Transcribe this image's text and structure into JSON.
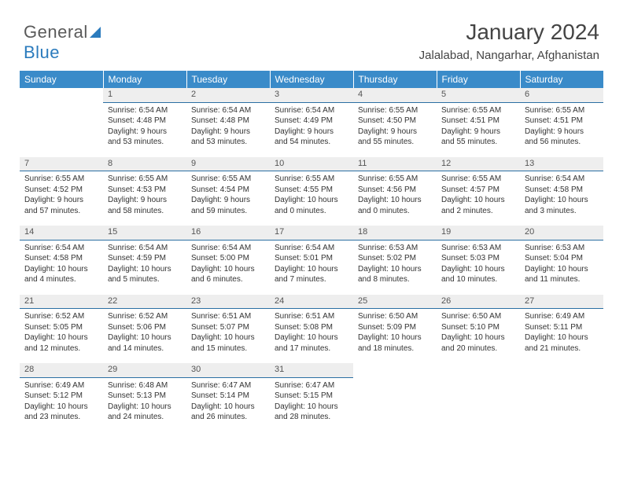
{
  "logo": {
    "word1": "General",
    "word2": "Blue"
  },
  "title": "January 2024",
  "location": "Jalalabad, Nangarhar, Afghanistan",
  "headers": [
    "Sunday",
    "Monday",
    "Tuesday",
    "Wednesday",
    "Thursday",
    "Friday",
    "Saturday"
  ],
  "colors": {
    "header_bg": "#3a8bc9",
    "header_text": "#ffffff",
    "daynum_bg": "#eeeeee",
    "daynum_border": "#2b6fa3",
    "logo_gray": "#5a5a5a",
    "logo_blue": "#2b7bbd",
    "text": "#333333",
    "background": "#ffffff"
  },
  "fonts": {
    "title_size": 28,
    "location_size": 15,
    "header_size": 12,
    "daynum_size": 11,
    "body_size": 10
  },
  "weeks": [
    [
      null,
      {
        "n": "1",
        "sr": "6:54 AM",
        "ss": "4:48 PM",
        "dl": "9 hours and 53 minutes."
      },
      {
        "n": "2",
        "sr": "6:54 AM",
        "ss": "4:48 PM",
        "dl": "9 hours and 53 minutes."
      },
      {
        "n": "3",
        "sr": "6:54 AM",
        "ss": "4:49 PM",
        "dl": "9 hours and 54 minutes."
      },
      {
        "n": "4",
        "sr": "6:55 AM",
        "ss": "4:50 PM",
        "dl": "9 hours and 55 minutes."
      },
      {
        "n": "5",
        "sr": "6:55 AM",
        "ss": "4:51 PM",
        "dl": "9 hours and 55 minutes."
      },
      {
        "n": "6",
        "sr": "6:55 AM",
        "ss": "4:51 PM",
        "dl": "9 hours and 56 minutes."
      }
    ],
    [
      {
        "n": "7",
        "sr": "6:55 AM",
        "ss": "4:52 PM",
        "dl": "9 hours and 57 minutes."
      },
      {
        "n": "8",
        "sr": "6:55 AM",
        "ss": "4:53 PM",
        "dl": "9 hours and 58 minutes."
      },
      {
        "n": "9",
        "sr": "6:55 AM",
        "ss": "4:54 PM",
        "dl": "9 hours and 59 minutes."
      },
      {
        "n": "10",
        "sr": "6:55 AM",
        "ss": "4:55 PM",
        "dl": "10 hours and 0 minutes."
      },
      {
        "n": "11",
        "sr": "6:55 AM",
        "ss": "4:56 PM",
        "dl": "10 hours and 0 minutes."
      },
      {
        "n": "12",
        "sr": "6:55 AM",
        "ss": "4:57 PM",
        "dl": "10 hours and 2 minutes."
      },
      {
        "n": "13",
        "sr": "6:54 AM",
        "ss": "4:58 PM",
        "dl": "10 hours and 3 minutes."
      }
    ],
    [
      {
        "n": "14",
        "sr": "6:54 AM",
        "ss": "4:58 PM",
        "dl": "10 hours and 4 minutes."
      },
      {
        "n": "15",
        "sr": "6:54 AM",
        "ss": "4:59 PM",
        "dl": "10 hours and 5 minutes."
      },
      {
        "n": "16",
        "sr": "6:54 AM",
        "ss": "5:00 PM",
        "dl": "10 hours and 6 minutes."
      },
      {
        "n": "17",
        "sr": "6:54 AM",
        "ss": "5:01 PM",
        "dl": "10 hours and 7 minutes."
      },
      {
        "n": "18",
        "sr": "6:53 AM",
        "ss": "5:02 PM",
        "dl": "10 hours and 8 minutes."
      },
      {
        "n": "19",
        "sr": "6:53 AM",
        "ss": "5:03 PM",
        "dl": "10 hours and 10 minutes."
      },
      {
        "n": "20",
        "sr": "6:53 AM",
        "ss": "5:04 PM",
        "dl": "10 hours and 11 minutes."
      }
    ],
    [
      {
        "n": "21",
        "sr": "6:52 AM",
        "ss": "5:05 PM",
        "dl": "10 hours and 12 minutes."
      },
      {
        "n": "22",
        "sr": "6:52 AM",
        "ss": "5:06 PM",
        "dl": "10 hours and 14 minutes."
      },
      {
        "n": "23",
        "sr": "6:51 AM",
        "ss": "5:07 PM",
        "dl": "10 hours and 15 minutes."
      },
      {
        "n": "24",
        "sr": "6:51 AM",
        "ss": "5:08 PM",
        "dl": "10 hours and 17 minutes."
      },
      {
        "n": "25",
        "sr": "6:50 AM",
        "ss": "5:09 PM",
        "dl": "10 hours and 18 minutes."
      },
      {
        "n": "26",
        "sr": "6:50 AM",
        "ss": "5:10 PM",
        "dl": "10 hours and 20 minutes."
      },
      {
        "n": "27",
        "sr": "6:49 AM",
        "ss": "5:11 PM",
        "dl": "10 hours and 21 minutes."
      }
    ],
    [
      {
        "n": "28",
        "sr": "6:49 AM",
        "ss": "5:12 PM",
        "dl": "10 hours and 23 minutes."
      },
      {
        "n": "29",
        "sr": "6:48 AM",
        "ss": "5:13 PM",
        "dl": "10 hours and 24 minutes."
      },
      {
        "n": "30",
        "sr": "6:47 AM",
        "ss": "5:14 PM",
        "dl": "10 hours and 26 minutes."
      },
      {
        "n": "31",
        "sr": "6:47 AM",
        "ss": "5:15 PM",
        "dl": "10 hours and 28 minutes."
      },
      null,
      null,
      null
    ]
  ],
  "labels": {
    "sunrise": "Sunrise: ",
    "sunset": "Sunset: ",
    "daylight": "Daylight: "
  }
}
